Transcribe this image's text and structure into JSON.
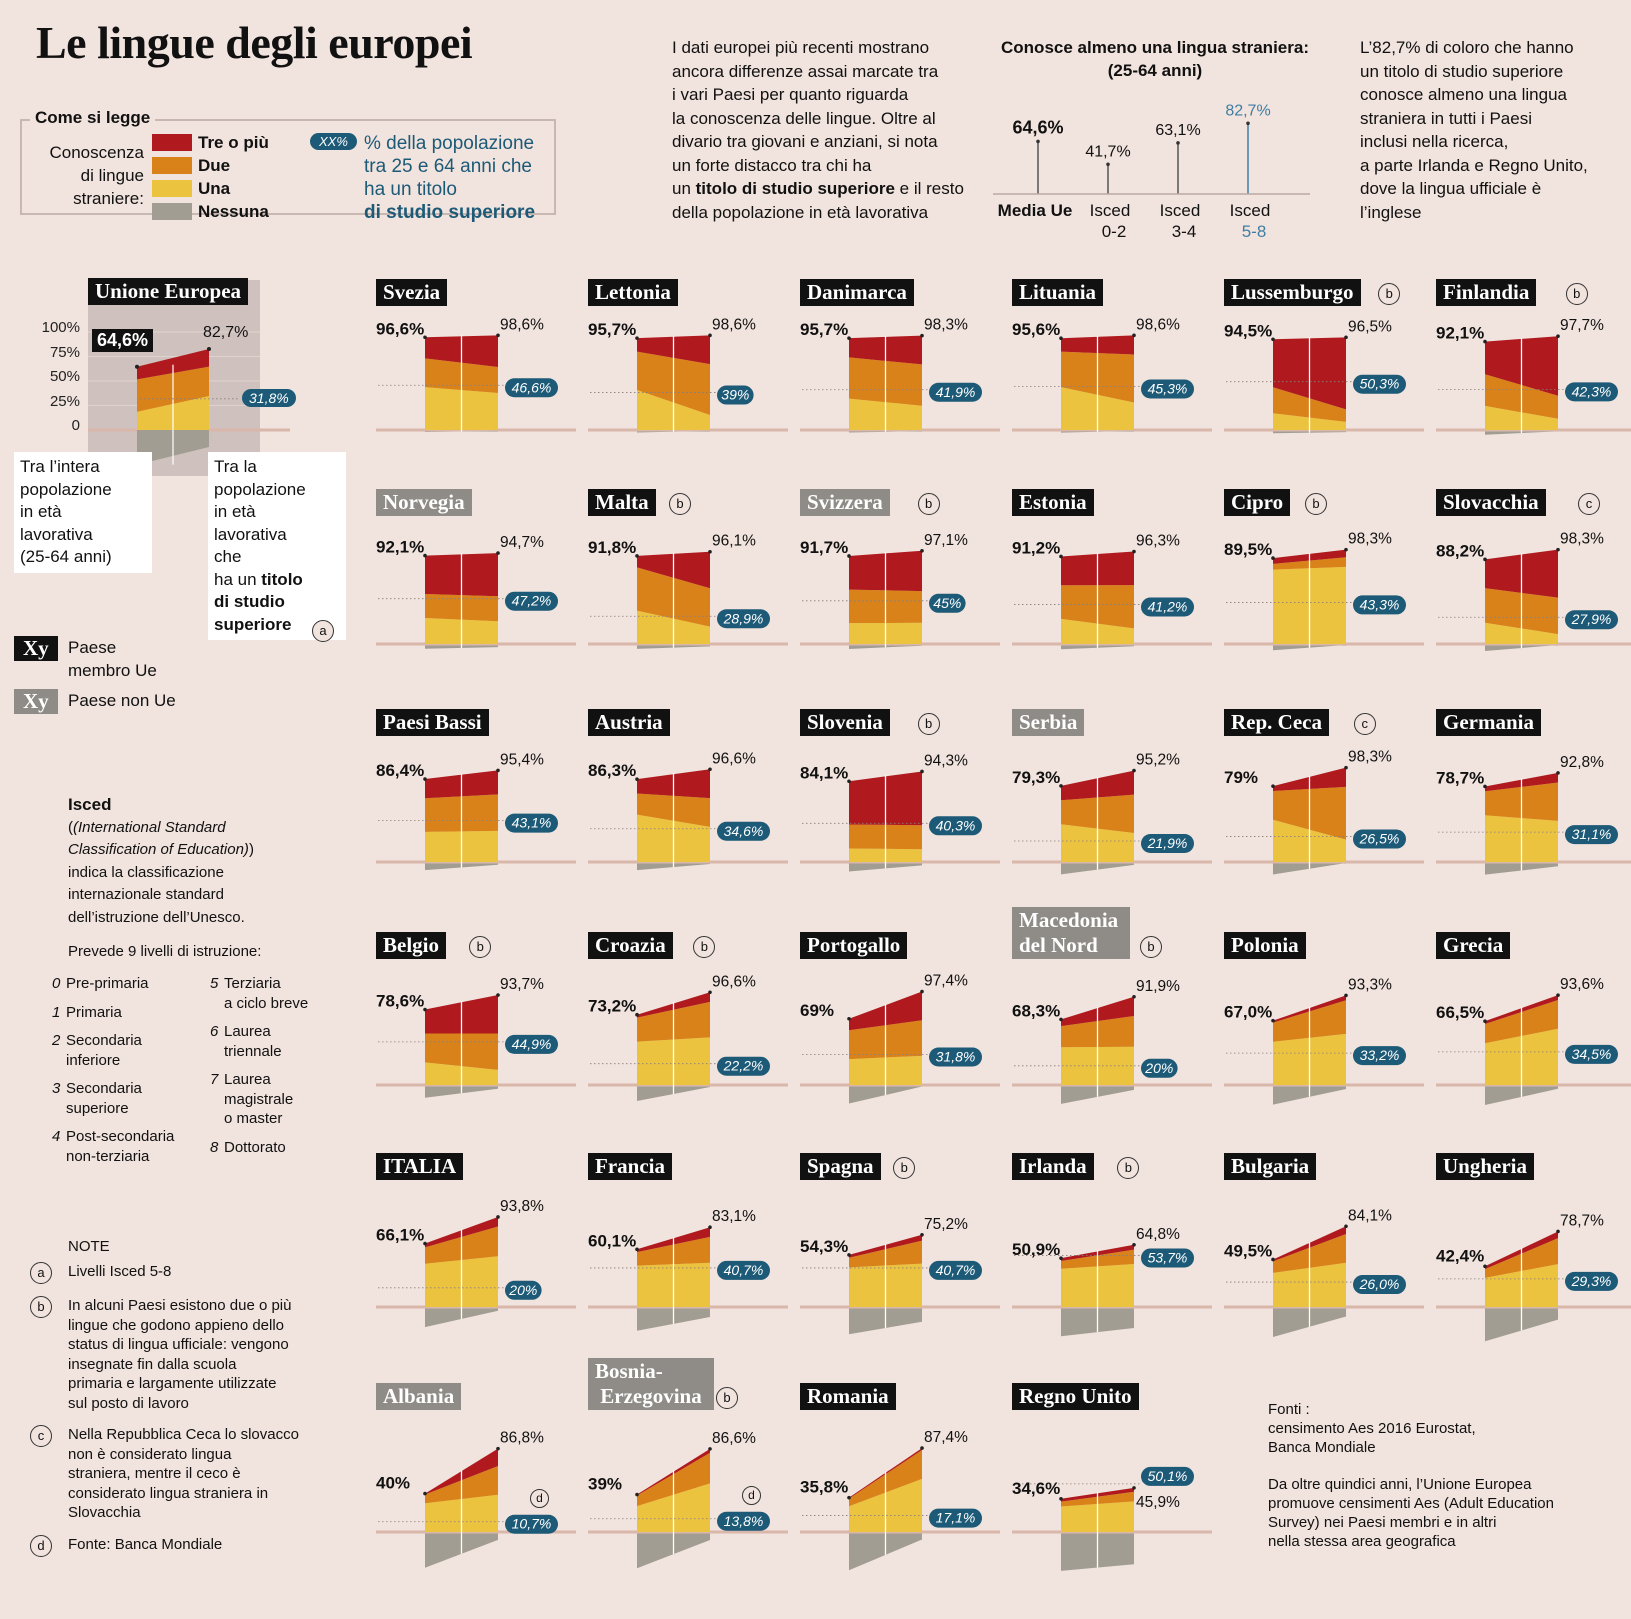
{
  "title": "Le lingue degli europei",
  "intro": {
    "lines": [
      "I dati europei più recenti mostrano",
      "ancora differenze assai marcate tra",
      "i vari Paesi per quanto riguarda",
      "la conoscenza delle lingue. Oltre al",
      "divario tra giovani e anziani, si nota",
      "un forte distacco tra chi ha"
    ],
    "bold": "titolo di studio superiore",
    "pre_bold": "un ",
    "post_bold": " e il resto",
    "last": "della popolazione in età lavorativa"
  },
  "right_text": [
    "L’82,7% di coloro che hanno",
    "un titolo di studio superiore",
    "conosce almeno una lingua",
    "straniera in tutti i Paesi",
    "inclusi nella ricerca,",
    "a parte Irlanda e Regno Unito,",
    "dove la lingua ufficiale è",
    "l’inglese"
  ],
  "legend": {
    "title": "Come si legge",
    "label_lines": [
      "Conoscenza",
      "di lingue",
      "straniere:"
    ],
    "items": [
      {
        "label": "Tre o più",
        "color": "#b0191e"
      },
      {
        "label": "Due",
        "color": "#d88219"
      },
      {
        "label": "Una",
        "color": "#ecc33f"
      },
      {
        "label": "Nessuna",
        "color": "#a29d92"
      }
    ],
    "badge": "XX%",
    "badge_text": [
      "% della popolazione",
      "tra 25 e 64 anni che",
      "ha un titolo",
      "di studio superiore"
    ]
  },
  "isced_chart": {
    "title_lines": [
      "Conosce almeno una lingua straniera:",
      "(25-64 anni)"
    ],
    "items": [
      {
        "value": "64,6%",
        "label1": "Media Ue",
        "label2": "",
        "v": 64.6
      },
      {
        "value": "41,7%",
        "label1": "Isced",
        "label2": "0-2",
        "v": 41.7
      },
      {
        "value": "63,1%",
        "label1": "Isced",
        "label2": "3-4",
        "v": 63.1
      },
      {
        "value": "82,7%",
        "label1": "Isced",
        "label2": "5-8",
        "v": 82.7
      }
    ]
  },
  "eu_panel": {
    "name": "Unione Europea",
    "left": "64,6%",
    "right": "82,7%",
    "badge": "31,8%",
    "ticks": [
      "100%",
      "75%",
      "50%",
      "25%",
      "0"
    ],
    "note_left": [
      "Tra l’intera",
      "popolazione",
      "in età",
      "lavorativa",
      "(25-64 anni)"
    ],
    "note_right_pre": [
      "Tra la",
      "popolazione",
      "in età",
      "lavorativa",
      "che",
      "ha un "
    ],
    "note_right_bold": [
      "titolo",
      "di studio",
      "superiore"
    ],
    "note_mark": "a"
  },
  "key": {
    "member": {
      "box": "Xy",
      "lines": [
        "Paese",
        "membro Ue"
      ]
    },
    "nonmember": {
      "box": "Xy",
      "lines": [
        "Paese non Ue"
      ]
    }
  },
  "isced_info": {
    "title": "Isced",
    "italic": [
      "(International Standard",
      "Classification of Education)"
    ],
    "lines": [
      "indica la classificazione",
      "internazionale standard",
      "dell’istruzione dell’Unesco."
    ],
    "levels_title": "Prevede 9 livelli di istruzione:",
    "levels_left": [
      {
        "n": "0",
        "t": [
          "Pre-primaria"
        ]
      },
      {
        "n": "1",
        "t": [
          "Primaria"
        ]
      },
      {
        "n": "2",
        "t": [
          "Secondaria",
          "inferiore"
        ]
      },
      {
        "n": "3",
        "t": [
          "Secondaria",
          "superiore"
        ]
      },
      {
        "n": "4",
        "t": [
          "Post-secondaria",
          "non-terziaria"
        ]
      }
    ],
    "levels_right": [
      {
        "n": "5",
        "t": [
          "Terziaria",
          "a ciclo breve"
        ]
      },
      {
        "n": "6",
        "t": [
          "Laurea",
          "triennale"
        ]
      },
      {
        "n": "7",
        "t": [
          "Laurea",
          "magistrale",
          "o master"
        ]
      },
      {
        "n": "8",
        "t": [
          "Dottorato"
        ]
      }
    ]
  },
  "notes": {
    "title": "NOTE",
    "items": [
      {
        "mark": "a",
        "lines": [
          "Livelli Isced 5-8"
        ]
      },
      {
        "mark": "b",
        "lines": [
          "In alcuni Paesi esistono due o più",
          "lingue che godono appieno dello",
          "status di lingua ufficiale: vengono",
          "insegnate fin dalla scuola",
          "primaria e largamente utilizzate",
          "sul posto di lavoro"
        ]
      },
      {
        "mark": "c",
        "lines": [
          "Nella Repubblica Ceca lo slovacco",
          "non è considerato lingua",
          "straniera, mentre il ceco è",
          "considerato lingua straniera in",
          "Slovacchia"
        ]
      },
      {
        "mark": "d",
        "lines": [
          "Fonte: Banca Mondiale"
        ]
      }
    ]
  },
  "sources": {
    "lines1": [
      "Fonti :",
      "censimento Aes 2016 Eurostat,",
      "Banca Mondiale"
    ],
    "lines2": [
      "Da oltre quindici anni, l’Unione Europea",
      "promuove censimenti Aes (Adult Education",
      "Survey) nei Paesi membri e in altri",
      "nella stessa area geografica"
    ]
  },
  "colors": {
    "tre": "#b0191e",
    "due": "#d88219",
    "una": "#ecc33f",
    "nessuna": "#a29d92",
    "badge": "#1c5a77",
    "background": "#f1e3dd",
    "axis": "#d9b7aa"
  },
  "chart_data": {
    "type": "area",
    "series": [
      {
        "name": "Tra l’intera popolazione in età lavorativa (25-64 anni)"
      },
      {
        "name": "Tra la popolazione in età lavorativa che ha un titolo di studio superiore"
      }
    ],
    "unit": "%",
    "countries": [
      {
        "name": "Svezia",
        "member": true,
        "mark": "",
        "left": "96,6%",
        "right": "98,6%",
        "badge": "46,6%",
        "l": [
          22,
          30,
          44.6
        ],
        "r": [
          33,
          27,
          38.6
        ]
      },
      {
        "name": "Lettonia",
        "member": true,
        "mark": "",
        "left": "95,7%",
        "right": "98,6%",
        "badge": "39%",
        "l": [
          14,
          40,
          41.7
        ],
        "r": [
          30,
          53,
          15.6
        ]
      },
      {
        "name": "Danimarca",
        "member": true,
        "mark": "",
        "left": "95,7%",
        "right": "98,3%",
        "badge": "41,9%",
        "l": [
          20,
          43,
          32.7
        ],
        "r": [
          30,
          43,
          25.3
        ]
      },
      {
        "name": "Lituania",
        "member": true,
        "mark": "",
        "left": "95,6%",
        "right": "98,6%",
        "badge": "45,3%",
        "l": [
          14,
          37,
          44.6
        ],
        "r": [
          20,
          50,
          28.6
        ]
      },
      {
        "name": "Lussemburgo",
        "member": true,
        "mark": "b",
        "left": "94,5%",
        "right": "96,5%",
        "badge": "50,3%",
        "l": [
          50,
          27,
          17.5
        ],
        "r": [
          75,
          13,
          8.5
        ]
      },
      {
        "name": "Finlandia",
        "member": true,
        "mark": "b",
        "left": "92,1%",
        "right": "97,7%",
        "badge": "42,3%",
        "l": [
          34,
          33,
          25.1
        ],
        "r": [
          62,
          24,
          11.7
        ]
      },
      {
        "name": "Norvegia",
        "member": false,
        "mark": "",
        "left": "92,1%",
        "right": "94,7%",
        "badge": "47,2%",
        "l": [
          40,
          25,
          27.1
        ],
        "r": [
          45,
          26,
          23.7
        ]
      },
      {
        "name": "Malta",
        "member": true,
        "mark": "b",
        "left": "91,8%",
        "right": "96,1%",
        "badge": "28,9%",
        "l": [
          12,
          45,
          34.8
        ],
        "r": [
          38,
          40,
          18.1
        ]
      },
      {
        "name": "Svizzera",
        "member": false,
        "mark": "b",
        "left": "91,7%",
        "right": "97,1%",
        "badge": "45%",
        "l": [
          35,
          35,
          21.7
        ],
        "r": [
          42,
          33,
          22.1
        ]
      },
      {
        "name": "Estonia",
        "member": true,
        "mark": "",
        "left": "91,2%",
        "right": "96,3%",
        "badge": "41,2%",
        "l": [
          30,
          35,
          26.2
        ],
        "r": [
          35,
          45,
          16.3
        ]
      },
      {
        "name": "Cipro",
        "member": true,
        "mark": "b",
        "left": "89,5%",
        "right": "98,3%",
        "badge": "43,3%",
        "l": [
          6,
          6,
          77.5
        ],
        "r": [
          8,
          10,
          80.3
        ]
      },
      {
        "name": "Slovacchia",
        "member": true,
        "mark": "c",
        "left": "88,2%",
        "right": "98,3%",
        "badge": "27,9%",
        "l": [
          30,
          36,
          22.2
        ],
        "r": [
          50,
          38,
          10.3
        ]
      },
      {
        "name": "Paesi Bassi",
        "member": true,
        "mark": "",
        "left": "86,4%",
        "right": "95,4%",
        "badge": "43,1%",
        "l": [
          20,
          35,
          31.4
        ],
        "r": [
          25,
          38,
          32.4
        ]
      },
      {
        "name": "Austria",
        "member": true,
        "mark": "",
        "left": "86,3%",
        "right": "96,6%",
        "badge": "34,6%",
        "l": [
          15,
          22,
          49.3
        ],
        "r": [
          30,
          30,
          36.6
        ]
      },
      {
        "name": "Slovenia",
        "member": true,
        "mark": "b",
        "left": "84,1%",
        "right": "94,3%",
        "badge": "40,3%",
        "l": [
          45,
          25,
          14.1
        ],
        "r": [
          56,
          25,
          13.3
        ]
      },
      {
        "name": "Serbia",
        "member": false,
        "mark": "",
        "left": "79,3%",
        "right": "95,2%",
        "badge": "21,9%",
        "l": [
          15,
          25,
          39.3
        ],
        "r": [
          25,
          40,
          30.2
        ]
      },
      {
        "name": "Rep. Ceca",
        "member": true,
        "mark": "c",
        "left": "79%",
        "right": "98,3%",
        "badge": "26,5%",
        "l": [
          5,
          30,
          44
        ],
        "r": [
          20,
          55,
          23.3
        ]
      },
      {
        "name": "Germania",
        "member": true,
        "mark": "",
        "left": "78,7%",
        "right": "92,8%",
        "badge": "31,1%",
        "l": [
          5,
          25,
          48.7
        ],
        "r": [
          10,
          40,
          42.8
        ]
      },
      {
        "name": "Belgio",
        "member": true,
        "mark": "b",
        "left": "78,6%",
        "right": "93,7%",
        "badge": "44,9%",
        "l": [
          25,
          30,
          23.6
        ],
        "r": [
          40,
          38,
          15.7
        ]
      },
      {
        "name": "Croazia",
        "member": true,
        "mark": "b",
        "left": "73,2%",
        "right": "96,6%",
        "badge": "22,2%",
        "l": [
          3,
          25,
          45.2
        ],
        "r": [
          10,
          37,
          49.6
        ]
      },
      {
        "name": "Portogallo",
        "member": true,
        "mark": "",
        "left": "69%",
        "right": "97,4%",
        "badge": "31,8%",
        "l": [
          12,
          30,
          27
        ],
        "r": [
          30,
          37,
          30.4
        ]
      },
      {
        "name": "Macedonia del Nord",
        "member": false,
        "mark": "b",
        "left": "68,3%",
        "right": "91,9%",
        "badge": "20%",
        "l": [
          7,
          22,
          39.3
        ],
        "r": [
          20,
          32,
          39.9
        ]
      },
      {
        "name": "Polonia",
        "member": true,
        "mark": "",
        "left": "67,0%",
        "right": "93,3%",
        "badge": "33,2%",
        "l": [
          2,
          20,
          45
        ],
        "r": [
          5,
          35,
          53.3
        ]
      },
      {
        "name": "Grecia",
        "member": true,
        "mark": "",
        "left": "66,5%",
        "right": "93,6%",
        "badge": "34,5%",
        "l": [
          3,
          20,
          43.5
        ],
        "r": [
          5,
          30,
          58.6
        ]
      },
      {
        "name": "ITALIA",
        "member": true,
        "mark": "",
        "left": "66,1%",
        "right": "93,8%",
        "badge": "20%",
        "l": [
          4,
          17,
          45.1
        ],
        "r": [
          10,
          31,
          52.8
        ]
      },
      {
        "name": "Francia",
        "member": true,
        "mark": "",
        "left": "60,1%",
        "right": "83,1%",
        "badge": "40,7%",
        "l": [
          3,
          14,
          43.1
        ],
        "r": [
          10,
          27,
          46.1
        ]
      },
      {
        "name": "Spagna",
        "member": true,
        "mark": "b",
        "left": "54,3%",
        "right": "75,2%",
        "badge": "40,7%",
        "l": [
          3,
          10,
          41.3
        ],
        "r": [
          6,
          24,
          45.2
        ]
      },
      {
        "name": "Irlanda",
        "member": true,
        "mark": "b",
        "left": "50,9%",
        "right": "64,8%",
        "badge": "53,7%",
        "l": [
          3,
          8,
          39.9
        ],
        "r": [
          5,
          15,
          44.8
        ]
      },
      {
        "name": "Bulgaria",
        "member": true,
        "mark": "",
        "left": "49,5%",
        "right": "84,1%",
        "badge": "26,0%",
        "l": [
          2,
          12,
          35.5
        ],
        "r": [
          8,
          30,
          46.1
        ]
      },
      {
        "name": "Ungheria",
        "member": true,
        "mark": "",
        "left": "42,4%",
        "right": "78,7%",
        "badge": "29,3%",
        "l": [
          3,
          9,
          30.4
        ],
        "r": [
          7,
          27,
          44.7
        ]
      },
      {
        "name": "Albania",
        "member": false,
        "mark": "",
        "left": "40%",
        "right": "86,8%",
        "badge": "10,7%",
        "l": [
          1,
          9,
          30
        ],
        "r": [
          18,
          30,
          38.8
        ],
        "badge_mark": "d"
      },
      {
        "name": "Bosnia-Erzegovina",
        "member": false,
        "mark": "b",
        "left": "39%",
        "right": "86,6%",
        "badge": "13,8%",
        "l": [
          1,
          11,
          27
        ],
        "r": [
          4,
          32,
          50.6
        ],
        "badge_mark": "d"
      },
      {
        "name": "Romania",
        "member": true,
        "mark": "",
        "left": "35,8%",
        "right": "87,4%",
        "badge": "17,1%",
        "l": [
          1,
          8,
          26.8
        ],
        "r": [
          2,
          30,
          55.4
        ]
      },
      {
        "name": "Regno Unito",
        "member": true,
        "mark": "",
        "left": "34,6%",
        "right": "45,9%",
        "badge": "50,1%",
        "l": [
          3,
          5,
          26.6
        ],
        "r": [
          4,
          10,
          31.9
        ],
        "badge_top": true
      }
    ]
  }
}
